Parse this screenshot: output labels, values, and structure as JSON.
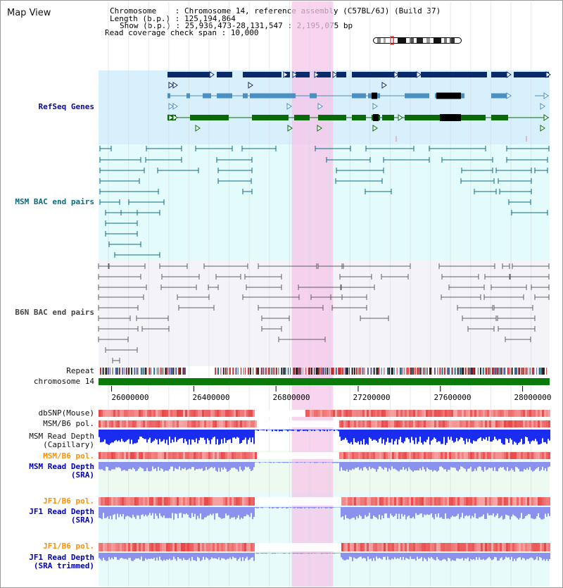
{
  "view": {
    "title": "Map View",
    "info": {
      "chromosome_label": "Chromosome    : ",
      "chromosome_value": "Chromosome 14, reference assembly (C57BL/6J) (Build 37)",
      "length_label": "Length (b.p.) : ",
      "length_value": "125,194,864",
      "show_label": "Show (b.p.) : ",
      "show_value": "25,936,473-28,131,547 : 2,195,075 bp",
      "coverage_label": "Read coverage check span : ",
      "coverage_value": "10,000"
    }
  },
  "axis": {
    "start_bp": 25936473,
    "end_bp": 28131547,
    "ticks": [
      "26000000",
      "26400000",
      "26800000",
      "27200000",
      "27600000",
      "28000000"
    ],
    "highlight": {
      "start_bp": 26877000,
      "end_bp": 27078000
    }
  },
  "tracks": {
    "refseq": {
      "label": "RefSeq Genes"
    },
    "msm_bac": {
      "label": "MSM BAC end pairs"
    },
    "b6n_bac": {
      "label": "B6N BAC end pairs"
    },
    "repeat": {
      "label": "Repeat"
    },
    "chromosome": {
      "label": "chromosome 14"
    },
    "dbsnp": {
      "label": "dbSNP(Mouse)"
    },
    "msm_pol_cap": {
      "label": "MSM/B6 pol."
    },
    "msm_depth_cap": {
      "label": "MSM Read Depth\n(Capillary)"
    },
    "msm_pol_sra": {
      "label": "MSM/B6 pol."
    },
    "msm_depth_sra": {
      "label": "MSM Read Depth\n(SRA)"
    },
    "jf1_pol_sra": {
      "label": "JF1/B6 pol."
    },
    "jf1_depth_sra": {
      "label": "JF1 Read Depth\n(SRA)"
    },
    "jf1_pol_trim": {
      "label": "JF1/B6 pol."
    },
    "jf1_depth_trim": {
      "label": "JF1 Read Depth\n(SRA trimmed)"
    }
  },
  "colors": {
    "refseq_bg": "#d8f0fb",
    "msm_bac_bg": "#e4fbfb",
    "b6n_bac_bg": "#f4f4f8",
    "highlight": "#f5c6ea",
    "gene_navy": "#0a2a6a",
    "gene_steel": "#4a90c0",
    "gene_green": "#0a6a0a",
    "bac_teal": "#0a6a80",
    "bac_gray": "#606060",
    "chromosome_bar": "#0a7a0a",
    "polymorphism": "#e84848",
    "depth_capillary": "#1a2cf0",
    "depth_sra": "#8a92ee",
    "depth_sra_bg": "#edfaf0",
    "depth_trim_bg": "#e8fbfb"
  }
}
